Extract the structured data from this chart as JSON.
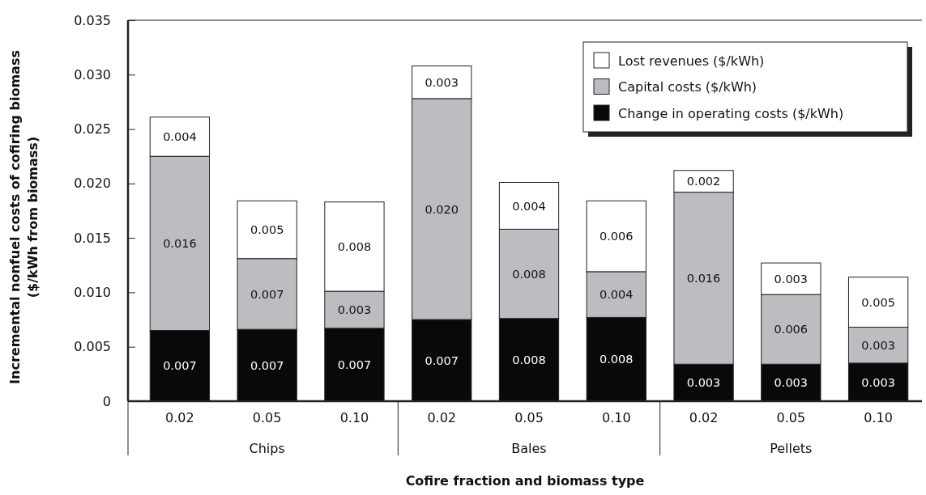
{
  "chart_data": {
    "type": "bar",
    "stacked": true,
    "xlabel": "Cofire fraction and biomass type",
    "ylabel": "Incremental nonfuel costs of cofiring biomass\n($/kWh from biomass)",
    "categories": [
      "0.02",
      "0.05",
      "0.10",
      "0.02",
      "0.05",
      "0.10",
      "0.02",
      "0.05",
      "0.10"
    ],
    "annotations": [
      "Chips",
      "Bales",
      "Pellets"
    ],
    "series": [
      {
        "name": "Change in operating costs ($/kWh)",
        "color": "#0a0909",
        "values": [
          0.0065,
          0.0066,
          0.0067,
          0.0075,
          0.0076,
          0.0077,
          0.0034,
          0.0034,
          0.0035
        ],
        "value_labels": [
          "0.007",
          "0.007",
          "0.007",
          "0.007",
          "0.008",
          "0.008",
          "0.003",
          "0.003",
          "0.003"
        ]
      },
      {
        "name": "Capital costs ($/kWh)",
        "color": "#bcbdc1",
        "values": [
          0.016,
          0.0065,
          0.0034,
          0.0203,
          0.0082,
          0.0042,
          0.0158,
          0.0064,
          0.0033
        ],
        "value_labels": [
          "0.016",
          "0.007",
          "0.003",
          "0.020",
          "0.008",
          "0.004",
          "0.016",
          "0.006",
          "0.003"
        ]
      },
      {
        "name": "Lost revenues ($/kWh)",
        "color": "#ffffff",
        "values": [
          0.0036,
          0.0053,
          0.0082,
          0.003,
          0.0043,
          0.0065,
          0.002,
          0.0029,
          0.0046
        ],
        "value_labels": [
          "0.004",
          "0.005",
          "0.008",
          "0.003",
          "0.004",
          "0.006",
          "0.002",
          "0.003",
          "0.005"
        ]
      }
    ],
    "ylim": [
      0,
      0.035
    ],
    "yticks": [
      {
        "value": 0,
        "label": "0"
      },
      {
        "value": 0.005,
        "label": "0.005"
      },
      {
        "value": 0.01,
        "label": "0.010"
      },
      {
        "value": 0.015,
        "label": "0.015"
      },
      {
        "value": 0.02,
        "label": "0.020"
      },
      {
        "value": 0.025,
        "label": "0.025"
      },
      {
        "value": 0.03,
        "label": "0.030"
      },
      {
        "value": 0.035,
        "label": "0.035"
      }
    ],
    "grid": false,
    "legend": "top right"
  }
}
